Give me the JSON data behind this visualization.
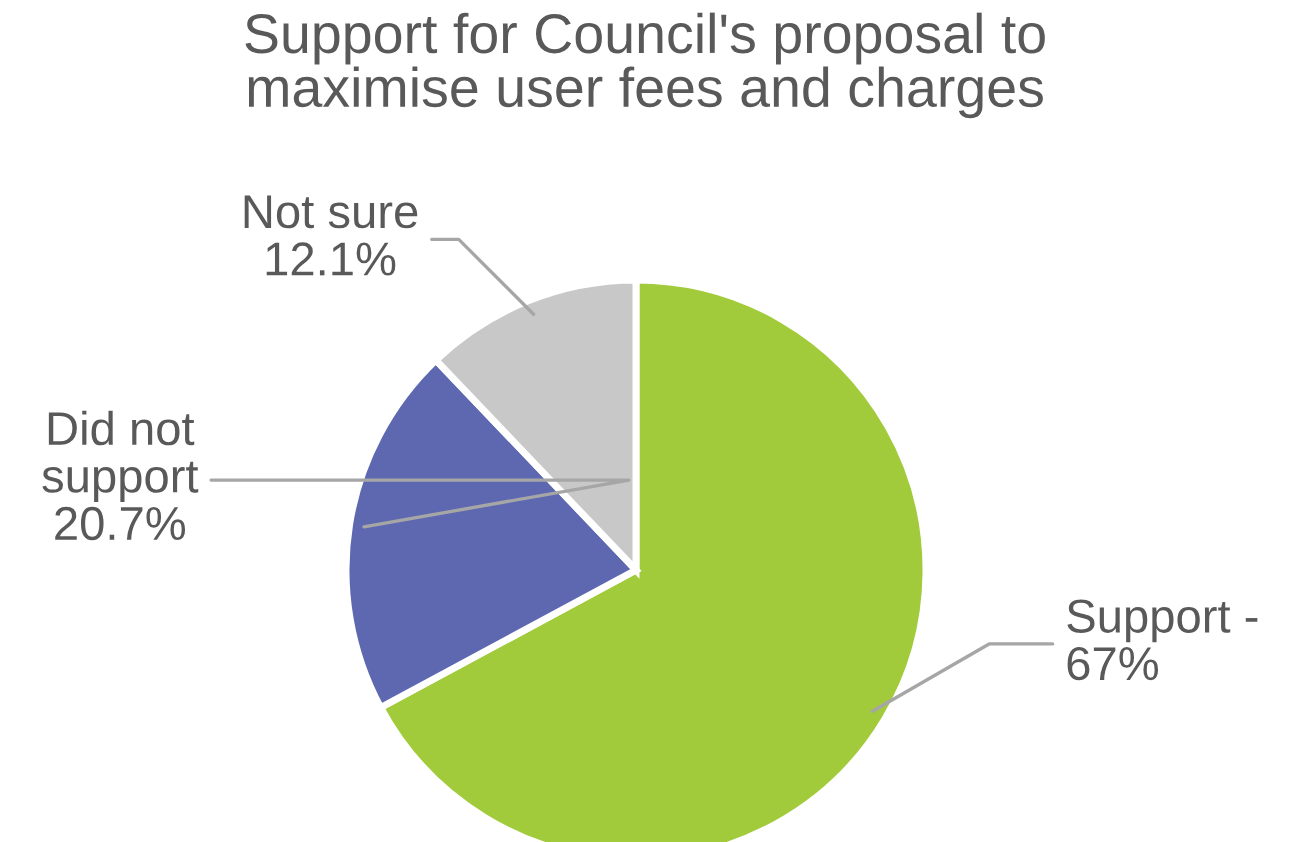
{
  "chart_data": {
    "type": "pie",
    "title": "Support for Council's proposal to\nmaximise user fees and charges",
    "categories": [
      "Support -",
      "Did not\nsupport",
      "Not sure"
    ],
    "values": [
      67,
      20.7,
      12.1
    ],
    "value_labels": [
      "67%",
      "20.7%",
      "12.1%"
    ],
    "colors": [
      "#a2cb3c",
      "#5d68b0",
      "#c8c8c8"
    ],
    "legend": false
  }
}
